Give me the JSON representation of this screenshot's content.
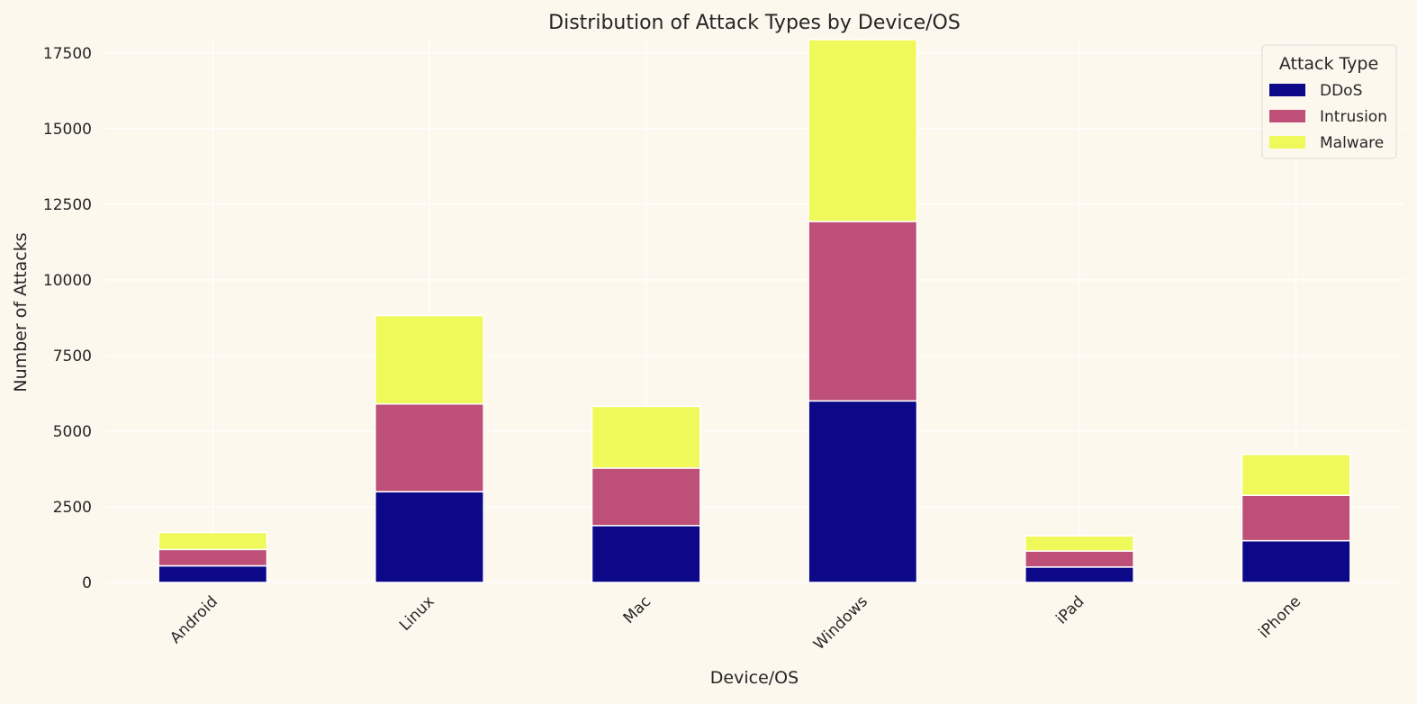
{
  "chart_data": {
    "type": "bar",
    "stacked": true,
    "title": "Distribution of Attack Types by Device/OS",
    "xlabel": "Device/OS",
    "ylabel": "Number of Attacks",
    "categories": [
      "Android",
      "Linux",
      "Mac",
      "Windows",
      "iPad",
      "iPhone"
    ],
    "series": [
      {
        "name": "DDoS",
        "color": "#0D0887",
        "values": [
          550,
          3000,
          1880,
          6000,
          510,
          1380
        ]
      },
      {
        "name": "Intrusion",
        "color": "#BE5078",
        "values": [
          540,
          2900,
          1900,
          5930,
          530,
          1500
        ]
      },
      {
        "name": "Malware",
        "color": "#F0F95A",
        "values": [
          560,
          2920,
          2040,
          6010,
          500,
          1350
        ]
      }
    ],
    "ylim": [
      0,
      18000
    ],
    "yticks": [
      0,
      2500,
      5000,
      7500,
      10000,
      12500,
      15000,
      17500
    ],
    "ytick_labels": [
      "0",
      "2500",
      "5000",
      "7500",
      "10000",
      "12500",
      "15000",
      "17500"
    ],
    "legend": {
      "title": "Attack Type",
      "position": "top-right"
    },
    "grid": true,
    "background": "#FDF8EE"
  }
}
